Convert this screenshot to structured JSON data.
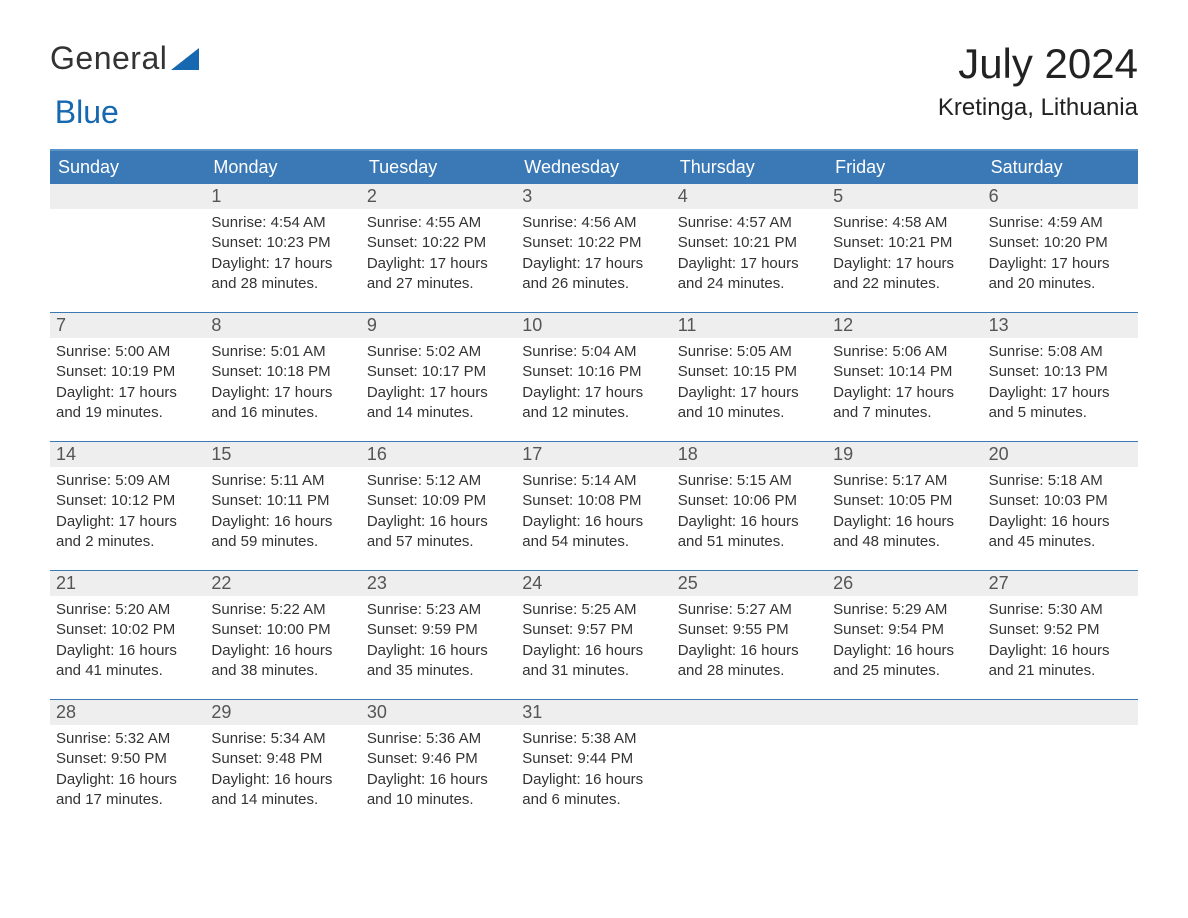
{
  "logo": {
    "text_general": "General",
    "text_blue": "Blue"
  },
  "title": {
    "month": "July 2024",
    "location": "Kretinga, Lithuania"
  },
  "colors": {
    "header_bg": "#3a78b6",
    "header_text": "#ffffff",
    "strip_bg": "#eeeeee",
    "body_text": "#333333",
    "accent_border": "#5a93c7",
    "logo_blue": "#1668b0"
  },
  "day_headers": [
    "Sunday",
    "Monday",
    "Tuesday",
    "Wednesday",
    "Thursday",
    "Friday",
    "Saturday"
  ],
  "weeks": [
    [
      null,
      {
        "n": "1",
        "sr": "4:54 AM",
        "ss": "10:23 PM",
        "dl": "17 hours and 28 minutes."
      },
      {
        "n": "2",
        "sr": "4:55 AM",
        "ss": "10:22 PM",
        "dl": "17 hours and 27 minutes."
      },
      {
        "n": "3",
        "sr": "4:56 AM",
        "ss": "10:22 PM",
        "dl": "17 hours and 26 minutes."
      },
      {
        "n": "4",
        "sr": "4:57 AM",
        "ss": "10:21 PM",
        "dl": "17 hours and 24 minutes."
      },
      {
        "n": "5",
        "sr": "4:58 AM",
        "ss": "10:21 PM",
        "dl": "17 hours and 22 minutes."
      },
      {
        "n": "6",
        "sr": "4:59 AM",
        "ss": "10:20 PM",
        "dl": "17 hours and 20 minutes."
      }
    ],
    [
      {
        "n": "7",
        "sr": "5:00 AM",
        "ss": "10:19 PM",
        "dl": "17 hours and 19 minutes."
      },
      {
        "n": "8",
        "sr": "5:01 AM",
        "ss": "10:18 PM",
        "dl": "17 hours and 16 minutes."
      },
      {
        "n": "9",
        "sr": "5:02 AM",
        "ss": "10:17 PM",
        "dl": "17 hours and 14 minutes."
      },
      {
        "n": "10",
        "sr": "5:04 AM",
        "ss": "10:16 PM",
        "dl": "17 hours and 12 minutes."
      },
      {
        "n": "11",
        "sr": "5:05 AM",
        "ss": "10:15 PM",
        "dl": "17 hours and 10 minutes."
      },
      {
        "n": "12",
        "sr": "5:06 AM",
        "ss": "10:14 PM",
        "dl": "17 hours and 7 minutes."
      },
      {
        "n": "13",
        "sr": "5:08 AM",
        "ss": "10:13 PM",
        "dl": "17 hours and 5 minutes."
      }
    ],
    [
      {
        "n": "14",
        "sr": "5:09 AM",
        "ss": "10:12 PM",
        "dl": "17 hours and 2 minutes."
      },
      {
        "n": "15",
        "sr": "5:11 AM",
        "ss": "10:11 PM",
        "dl": "16 hours and 59 minutes."
      },
      {
        "n": "16",
        "sr": "5:12 AM",
        "ss": "10:09 PM",
        "dl": "16 hours and 57 minutes."
      },
      {
        "n": "17",
        "sr": "5:14 AM",
        "ss": "10:08 PM",
        "dl": "16 hours and 54 minutes."
      },
      {
        "n": "18",
        "sr": "5:15 AM",
        "ss": "10:06 PM",
        "dl": "16 hours and 51 minutes."
      },
      {
        "n": "19",
        "sr": "5:17 AM",
        "ss": "10:05 PM",
        "dl": "16 hours and 48 minutes."
      },
      {
        "n": "20",
        "sr": "5:18 AM",
        "ss": "10:03 PM",
        "dl": "16 hours and 45 minutes."
      }
    ],
    [
      {
        "n": "21",
        "sr": "5:20 AM",
        "ss": "10:02 PM",
        "dl": "16 hours and 41 minutes."
      },
      {
        "n": "22",
        "sr": "5:22 AM",
        "ss": "10:00 PM",
        "dl": "16 hours and 38 minutes."
      },
      {
        "n": "23",
        "sr": "5:23 AM",
        "ss": "9:59 PM",
        "dl": "16 hours and 35 minutes."
      },
      {
        "n": "24",
        "sr": "5:25 AM",
        "ss": "9:57 PM",
        "dl": "16 hours and 31 minutes."
      },
      {
        "n": "25",
        "sr": "5:27 AM",
        "ss": "9:55 PM",
        "dl": "16 hours and 28 minutes."
      },
      {
        "n": "26",
        "sr": "5:29 AM",
        "ss": "9:54 PM",
        "dl": "16 hours and 25 minutes."
      },
      {
        "n": "27",
        "sr": "5:30 AM",
        "ss": "9:52 PM",
        "dl": "16 hours and 21 minutes."
      }
    ],
    [
      {
        "n": "28",
        "sr": "5:32 AM",
        "ss": "9:50 PM",
        "dl": "16 hours and 17 minutes."
      },
      {
        "n": "29",
        "sr": "5:34 AM",
        "ss": "9:48 PM",
        "dl": "16 hours and 14 minutes."
      },
      {
        "n": "30",
        "sr": "5:36 AM",
        "ss": "9:46 PM",
        "dl": "16 hours and 10 minutes."
      },
      {
        "n": "31",
        "sr": "5:38 AM",
        "ss": "9:44 PM",
        "dl": "16 hours and 6 minutes."
      },
      null,
      null,
      null
    ]
  ],
  "labels": {
    "sunrise_prefix": "Sunrise: ",
    "sunset_prefix": "Sunset: ",
    "daylight_prefix": "Daylight: "
  }
}
